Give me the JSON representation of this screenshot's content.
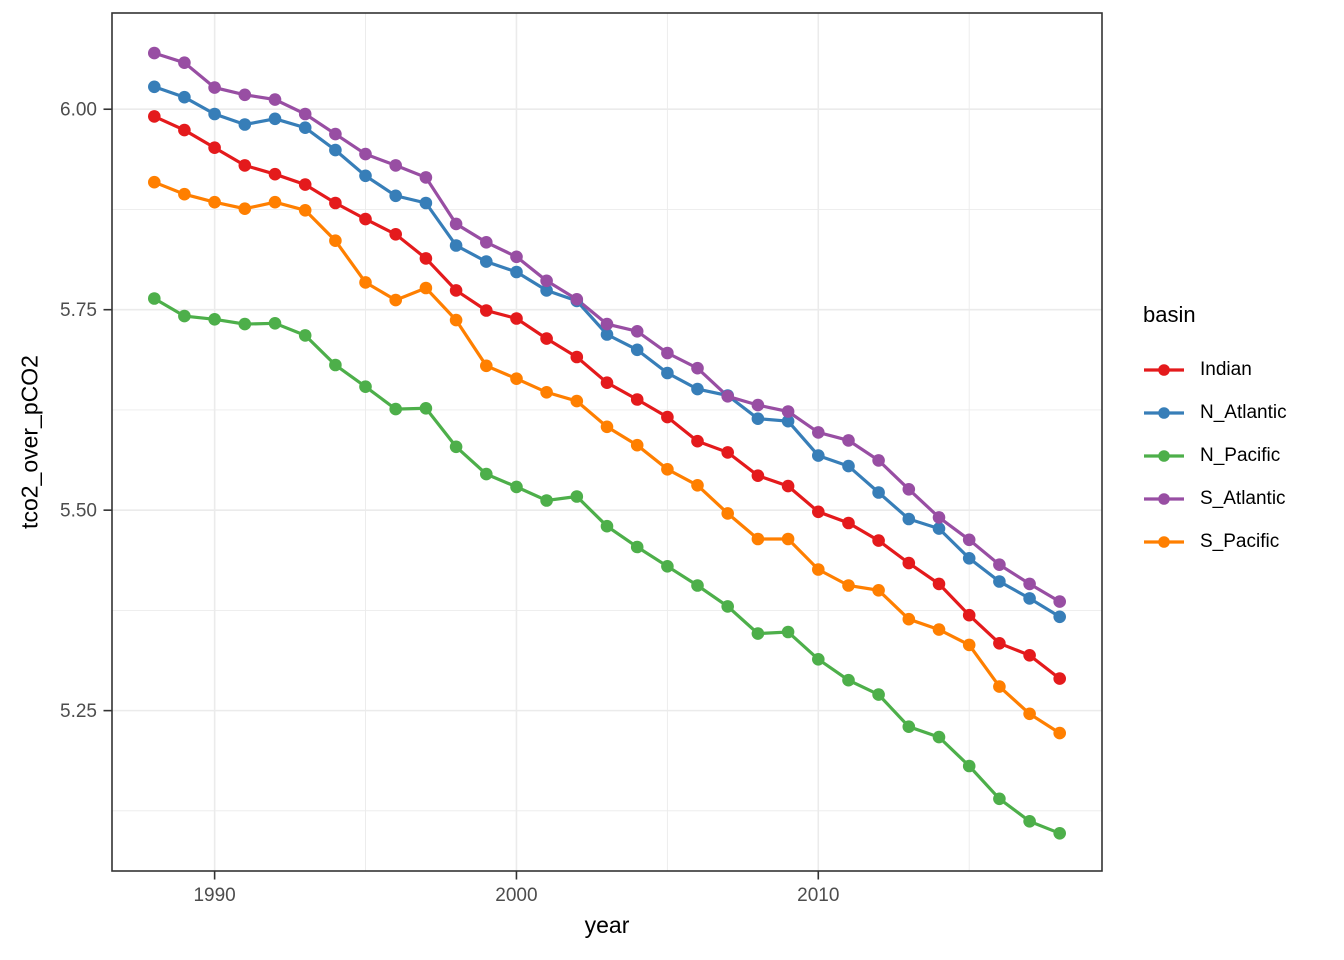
{
  "chart_data": {
    "type": "line",
    "title": "",
    "xlabel": "year",
    "ylabel": "tco2_over_pCO2",
    "legend_title": "basin",
    "legend_position": "right",
    "grid": true,
    "xlim": [
      1986.6,
      2019.4
    ],
    "ylim": [
      5.05,
      6.12
    ],
    "xticks": {
      "major": [
        1990,
        2000,
        2010
      ],
      "minor": [
        1995,
        2005,
        2015
      ],
      "labels": [
        "1990",
        "2000",
        "2010"
      ]
    },
    "yticks": {
      "major": [
        5.25,
        5.5,
        5.75,
        6.0
      ],
      "minor": [
        5.125,
        5.375,
        5.625,
        5.875
      ],
      "labels": [
        "5.25",
        "5.50",
        "5.75",
        "6.00"
      ]
    },
    "x": [
      1988,
      1989,
      1990,
      1991,
      1992,
      1993,
      1994,
      1995,
      1996,
      1997,
      1998,
      1999,
      2000,
      2001,
      2002,
      2003,
      2004,
      2005,
      2006,
      2007,
      2008,
      2009,
      2010,
      2011,
      2012,
      2013,
      2014,
      2015,
      2016,
      2017,
      2018
    ],
    "series": [
      {
        "name": "Indian",
        "color": "#E41A1C",
        "values": [
          5.991,
          5.974,
          5.952,
          5.93,
          5.919,
          5.906,
          5.883,
          5.863,
          5.844,
          5.814,
          5.774,
          5.749,
          5.739,
          5.714,
          5.691,
          5.659,
          5.638,
          5.616,
          5.586,
          5.572,
          5.543,
          5.53,
          5.498,
          5.484,
          5.462,
          5.434,
          5.408,
          5.369,
          5.334,
          5.319,
          5.29
        ]
      },
      {
        "name": "N_Atlantic",
        "color": "#377EB8",
        "values": [
          6.028,
          6.015,
          5.994,
          5.981,
          5.988,
          5.977,
          5.949,
          5.917,
          5.892,
          5.883,
          5.83,
          5.81,
          5.797,
          5.774,
          5.761,
          5.719,
          5.7,
          5.671,
          5.651,
          5.643,
          5.614,
          5.611,
          5.568,
          5.555,
          5.522,
          5.489,
          5.477,
          5.44,
          5.411,
          5.39,
          5.367
        ]
      },
      {
        "name": "N_Pacific",
        "color": "#4DAF4A",
        "values": [
          5.764,
          5.742,
          5.738,
          5.732,
          5.733,
          5.718,
          5.681,
          5.654,
          5.626,
          5.627,
          5.579,
          5.545,
          5.529,
          5.512,
          5.517,
          5.48,
          5.454,
          5.43,
          5.406,
          5.38,
          5.346,
          5.348,
          5.314,
          5.288,
          5.27,
          5.23,
          5.217,
          5.181,
          5.14,
          5.112,
          5.097
        ]
      },
      {
        "name": "S_Atlantic",
        "color": "#984EA3",
        "values": [
          6.07,
          6.058,
          6.027,
          6.018,
          6.012,
          5.994,
          5.969,
          5.944,
          5.93,
          5.915,
          5.857,
          5.834,
          5.816,
          5.786,
          5.763,
          5.732,
          5.723,
          5.696,
          5.677,
          5.642,
          5.631,
          5.623,
          5.597,
          5.587,
          5.562,
          5.526,
          5.491,
          5.463,
          5.432,
          5.408,
          5.386
        ]
      },
      {
        "name": "S_Pacific",
        "color": "#FF7F00",
        "values": [
          5.909,
          5.894,
          5.884,
          5.876,
          5.884,
          5.874,
          5.836,
          5.784,
          5.762,
          5.777,
          5.737,
          5.68,
          5.664,
          5.647,
          5.636,
          5.604,
          5.581,
          5.551,
          5.531,
          5.496,
          5.464,
          5.464,
          5.426,
          5.406,
          5.4,
          5.364,
          5.351,
          5.332,
          5.28,
          5.246,
          5.222
        ]
      }
    ]
  },
  "style": {
    "background": "#FFFFFF",
    "panel_fill": "#FFFFFF",
    "grid_major_color": "#EBEBEB",
    "grid_minor_color": "#EBEBEB",
    "panel_border_color": "#333333",
    "tick_color": "#333333",
    "axis_text_color": "#4D4D4D",
    "axis_title_color": "#000000",
    "point_radius": 6.3,
    "line_width": 3.2
  }
}
